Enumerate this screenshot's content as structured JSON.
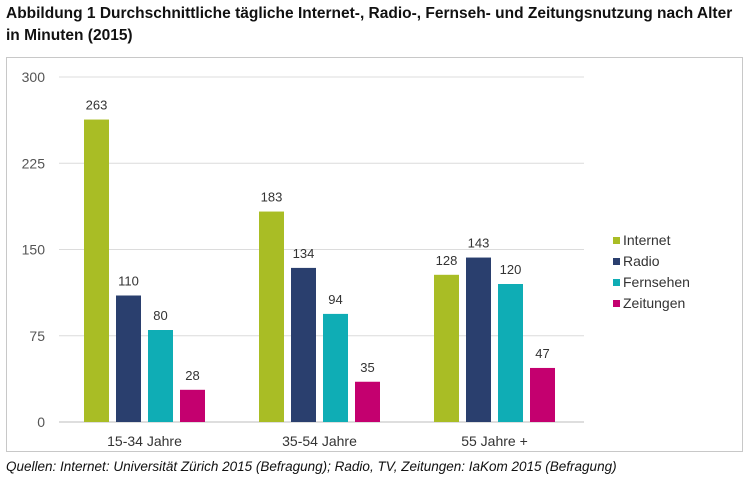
{
  "title": "Abbildung 1 Durchschnittliche tägliche Internet-, Radio-, Fernseh- und Zeitungsnutzung nach Alter in Minuten (2015)",
  "source": "Quellen: Internet: Universität Zürich 2015 (Befragung); Radio, TV, Zeitungen: IaKom 2015 (Befragung)",
  "colors": {
    "Internet": "#a9bd25",
    "Radio": "#2a3f6e",
    "Fernsehen": "#0fadb5",
    "Zeitungen": "#c4006f"
  },
  "chart_data": {
    "type": "bar",
    "title": "Abbildung 1 Durchschnittliche tägliche Internet-, Radio-, Fernseh- und Zeitungsnutzung nach Alter in Minuten (2015)",
    "xlabel": "",
    "ylabel": "",
    "categories": [
      "15-34 Jahre",
      "35-54 Jahre",
      "55 Jahre +"
    ],
    "series": [
      {
        "name": "Internet",
        "values": [
          263,
          183,
          128
        ]
      },
      {
        "name": "Radio",
        "values": [
          110,
          134,
          143
        ]
      },
      {
        "name": "Fernsehen",
        "values": [
          80,
          94,
          120
        ]
      },
      {
        "name": "Zeitungen",
        "values": [
          28,
          35,
          47
        ]
      }
    ],
    "ylim": [
      0,
      300
    ],
    "yticks": [
      0,
      75,
      150,
      225,
      300
    ],
    "grid": true,
    "legend": "right",
    "data_labels": true
  }
}
